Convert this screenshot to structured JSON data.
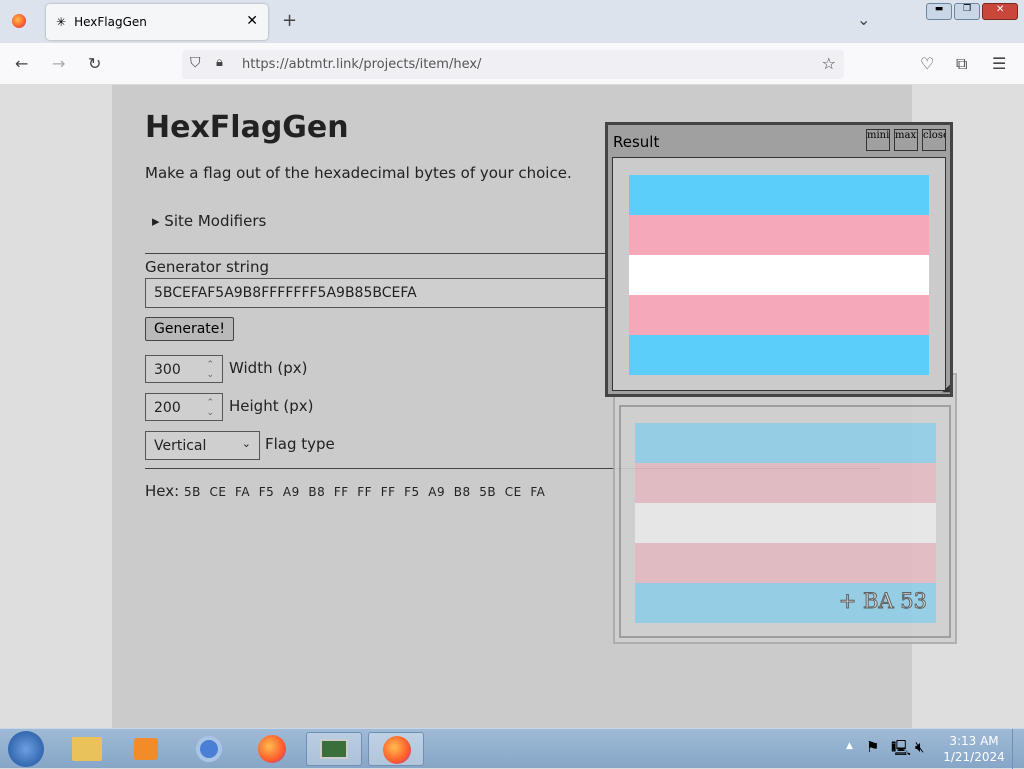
{
  "browser": {
    "tab_title": "HexFlagGen",
    "url": "https://abtmtr.link/projects/item/hex/"
  },
  "page": {
    "title": "HexFlagGen",
    "subtitle": "Make a flag out of the hexadecimal bytes of your choice.",
    "site_modifiers": "▸ Site Modifiers",
    "generator_label": "Generator string",
    "generator_value": "5BCEFAF5A9B8FFFFFFF5A9B85BCEFA",
    "generate_button": "Generate!",
    "width_value": "300",
    "width_label": "Width (px)",
    "height_value": "200",
    "height_label": "Height (px)",
    "flag_type_value": "Vertical",
    "flag_type_label": "Flag type",
    "hex_label": "Hex:",
    "hex_bytes": "5B  CE  FA  F5  A9  B8  FF  FF  FF  F5  A9  B8  5B  CE  FA"
  },
  "result_window": {
    "title": "Result",
    "buttons": [
      "minimize",
      "maximize",
      "close"
    ],
    "stripes": [
      "#5BCEFA",
      "#F5A9B8",
      "#FFFFFF",
      "#F5A9B8",
      "#5BCEFA"
    ]
  },
  "ghost_window": {
    "overlay_text": "+ BA 53"
  },
  "taskbar": {
    "time": "3:13 AM",
    "date": "1/21/2024"
  }
}
